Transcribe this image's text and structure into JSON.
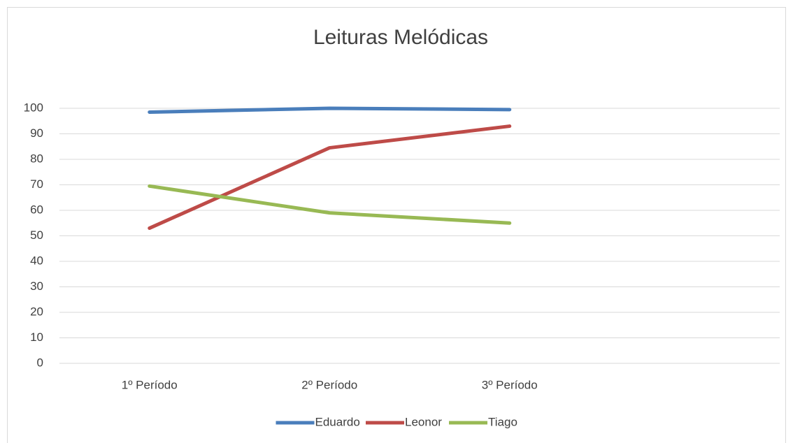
{
  "chart_data": {
    "type": "line",
    "title": "Leituras Melódicas",
    "categories": [
      "1º Período",
      "2º Período",
      "3º Período",
      null
    ],
    "series": [
      {
        "name": "Eduardo",
        "color": "#4a7ebb",
        "values": [
          98.5,
          100,
          99.5,
          null
        ]
      },
      {
        "name": "Leonor",
        "color": "#be4b48",
        "values": [
          53,
          84.5,
          93,
          null
        ]
      },
      {
        "name": "Tiago",
        "color": "#98b954",
        "values": [
          69.5,
          59,
          55,
          null
        ]
      }
    ],
    "ylim": [
      0,
      100
    ],
    "yticks": [
      0,
      10,
      20,
      30,
      40,
      50,
      60,
      70,
      80,
      90,
      100
    ],
    "grid": true,
    "legend": "bottom"
  }
}
